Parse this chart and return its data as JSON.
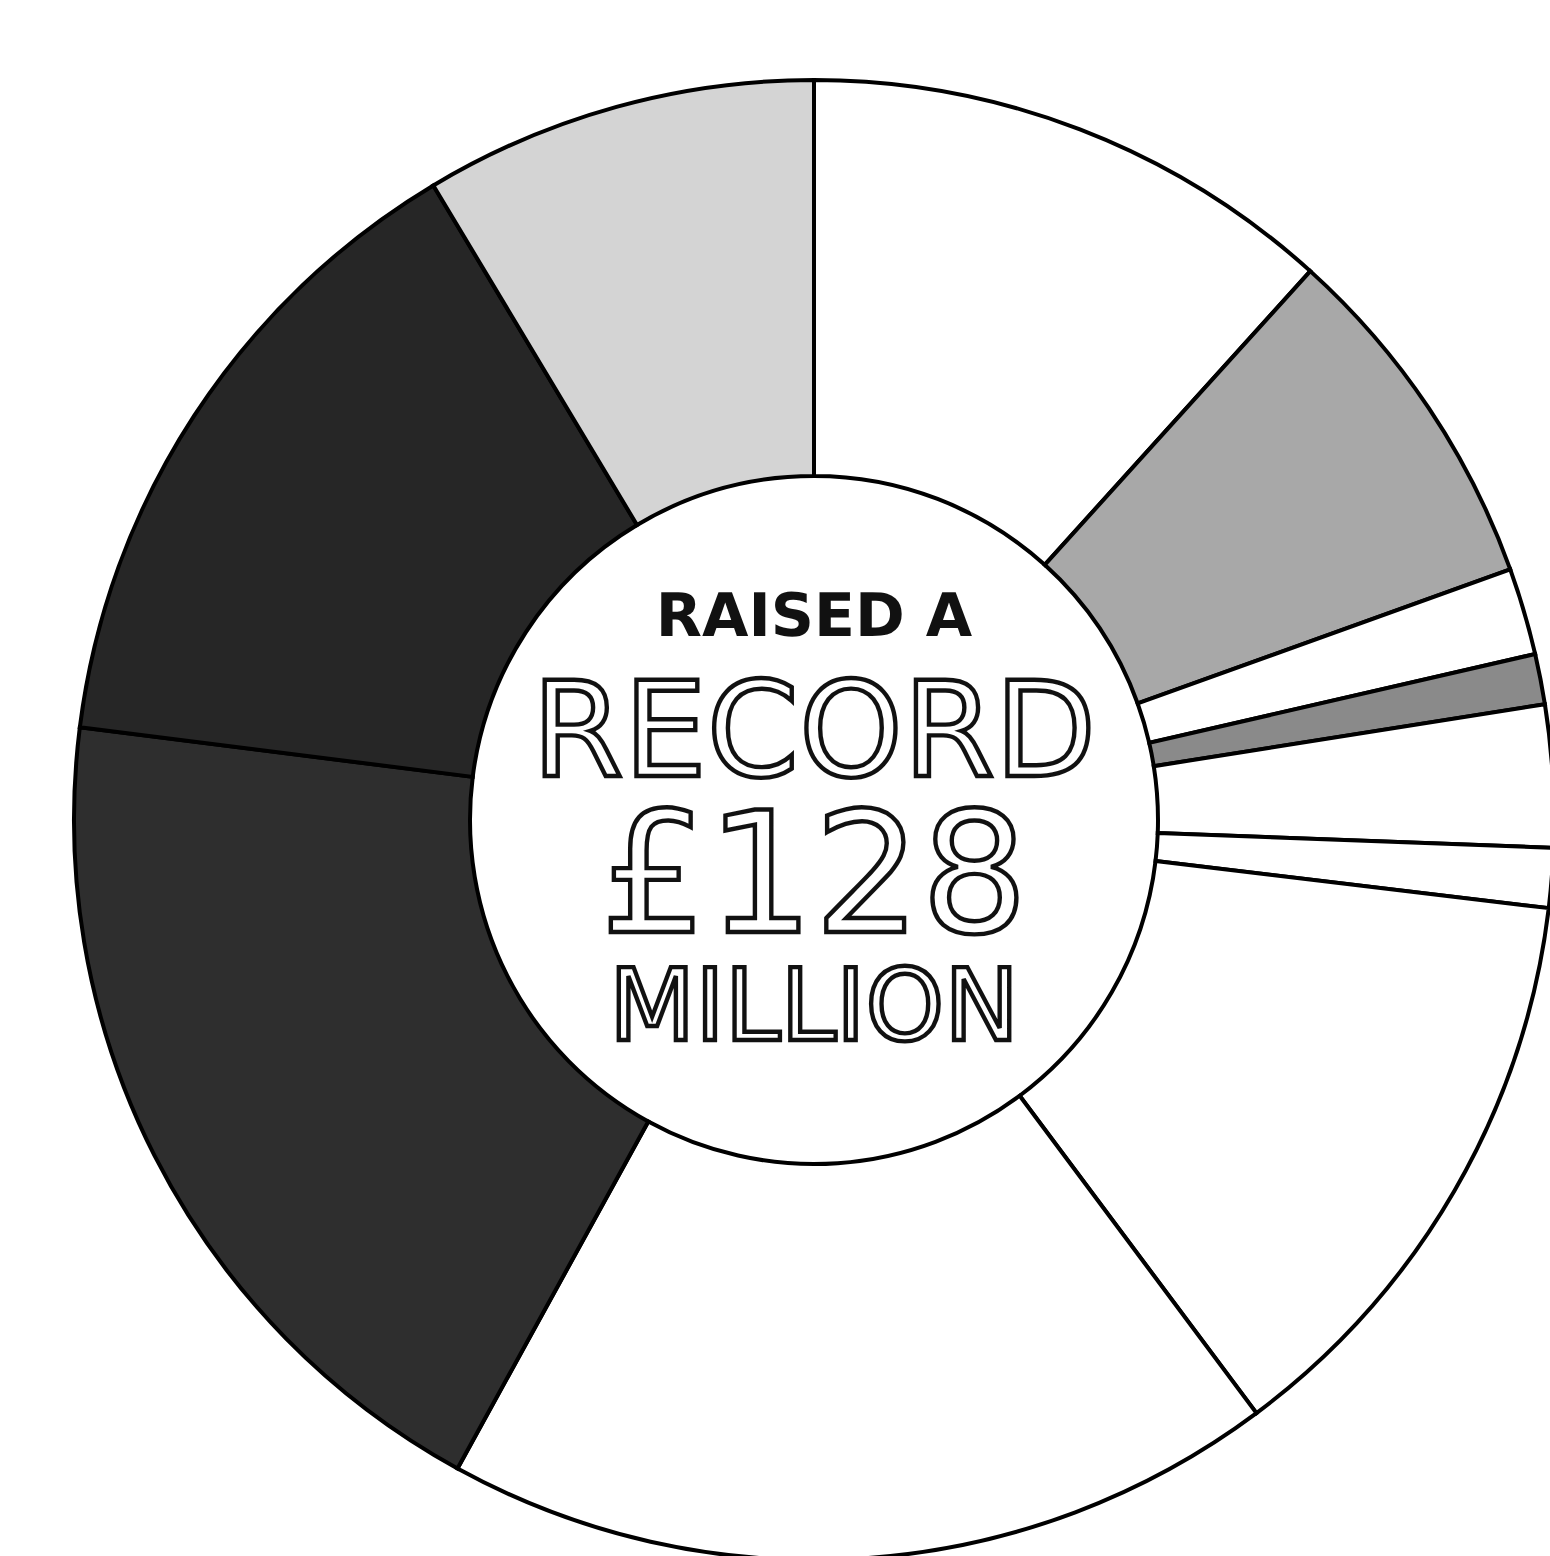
{
  "chart_data": {
    "type": "donut",
    "categories": [
      null,
      null,
      null,
      null,
      null,
      null,
      null,
      null,
      null,
      null,
      null
    ],
    "values": [
      11.7,
      7.8,
      1.9,
      1.1,
      3.1,
      1.3,
      12.9,
      18.2,
      19.0,
      14.4,
      8.6
    ],
    "colors": [
      "#ffffff",
      "#a8a8a8",
      "#ffffff",
      "#8a8a8a",
      "#ffffff",
      "#ffffff",
      "#ffffff",
      "#ffffff",
      "#2e2e2e",
      "#262626",
      "#d4d4d4"
    ],
    "annotations": [
      "RAISED A",
      "RECORD",
      "£128",
      "MILLION"
    ]
  }
}
